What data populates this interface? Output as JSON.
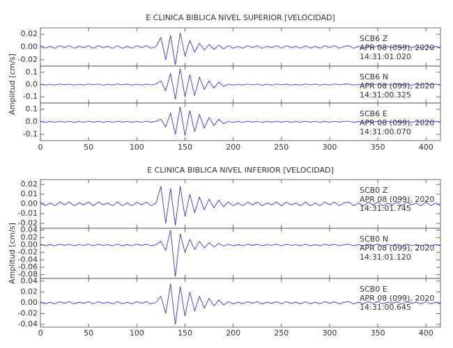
{
  "chart_data": [
    {
      "type": "line",
      "title": "E CLINICA BIBLICA NIVEL SUPERIOR [VELOCIDAD]",
      "y_label": "Amplitud [cm/s]",
      "color": "#1a1aff",
      "xlim": [
        0,
        415
      ],
      "xticks": [
        0,
        50,
        100,
        150,
        200,
        250,
        300,
        350,
        400
      ],
      "x": [
        0,
        5,
        10,
        15,
        20,
        25,
        30,
        35,
        40,
        45,
        50,
        55,
        60,
        65,
        70,
        75,
        80,
        85,
        90,
        95,
        100,
        105,
        110,
        115,
        120,
        125,
        130,
        135,
        140,
        145,
        150,
        155,
        160,
        165,
        170,
        175,
        180,
        185,
        190,
        195,
        200,
        205,
        210,
        215,
        220,
        225,
        230,
        235,
        240,
        245,
        250,
        255,
        260,
        265,
        270,
        275,
        280,
        285,
        290,
        295,
        300,
        305,
        310,
        315,
        320,
        325,
        330,
        335,
        340,
        345,
        350,
        355,
        360,
        365,
        370,
        375,
        380,
        385,
        390,
        395,
        400,
        405,
        410,
        415
      ],
      "panels": [
        {
          "station": "SCB6   Z",
          "date": "APR 08 (099), 2020",
          "time": "14:31:01.020",
          "ylim": [
            -0.03,
            0.03
          ],
          "yticks": [
            0.02,
            {
              "value": 0,
              "label": "0.00"
            },
            -0.02
          ],
          "values": [
            0.002,
            -0.002,
            0.001,
            -0.002,
            0.002,
            -0.001,
            0.002,
            -0.002,
            0.001,
            -0.001,
            0.002,
            -0.002,
            0.002,
            -0.001,
            0.001,
            -0.002,
            0.002,
            -0.002,
            0.001,
            -0.002,
            0.002,
            -0.001,
            0.002,
            -0.002,
            0.001,
            0.015,
            -0.02,
            0.018,
            -0.028,
            0.022,
            -0.014,
            0.01,
            -0.008,
            0.006,
            -0.005,
            0.004,
            -0.004,
            0.003,
            -0.003,
            0.002,
            -0.002,
            0.001,
            -0.002,
            0.002,
            -0.001,
            0.002,
            -0.002,
            0.001,
            -0.001,
            0.002,
            -0.002,
            0.002,
            -0.001,
            0.001,
            -0.002,
            0.002,
            -0.002,
            0.001,
            -0.002,
            0.002,
            -0.001,
            0.002,
            -0.002,
            0.001,
            0.002,
            -0.002,
            0.001,
            -0.002,
            0.002,
            -0.001,
            0.002,
            -0.002,
            0.001,
            -0.001,
            0.002,
            -0.002,
            0.002,
            -0.001,
            0.001,
            -0.002,
            0.002,
            -0.002,
            0.001,
            -0.002
          ]
        },
        {
          "station": "SCB6   N",
          "date": "APR 08 (099), 2020",
          "time": "14:31:00.325",
          "ylim": [
            -0.15,
            0.15
          ],
          "yticks": [
            0.1,
            {
              "value": 0,
              "label": "0.0"
            },
            -0.1
          ],
          "values": [
            0.004,
            -0.005,
            0.003,
            -0.004,
            0.005,
            -0.003,
            0.004,
            -0.005,
            0.003,
            -0.004,
            0.005,
            -0.003,
            0.004,
            -0.005,
            0.003,
            -0.004,
            0.005,
            -0.003,
            0.004,
            -0.005,
            0.003,
            -0.004,
            0.005,
            -0.003,
            0.004,
            0.03,
            -0.05,
            0.09,
            -0.12,
            0.13,
            -0.1,
            0.08,
            -0.09,
            0.06,
            -0.04,
            0.03,
            -0.03,
            0.02,
            -0.015,
            0.004,
            -0.005,
            0.003,
            -0.004,
            0.005,
            -0.003,
            0.004,
            -0.005,
            0.003,
            -0.004,
            0.005,
            -0.003,
            0.004,
            -0.005,
            0.003,
            -0.004,
            0.005,
            -0.003,
            0.004,
            -0.005,
            0.003,
            -0.004,
            0.005,
            -0.003,
            0.004,
            0.004,
            -0.005,
            0.003,
            -0.004,
            0.005,
            -0.003,
            0.004,
            -0.005,
            0.003,
            -0.004,
            0.005,
            -0.003,
            0.004,
            -0.005,
            0.003,
            -0.004,
            0.005,
            -0.003,
            0.004,
            -0.005
          ]
        },
        {
          "station": "SCB6   E",
          "date": "APR 08 (099), 2020",
          "time": "14:31:00.070",
          "ylim": [
            -0.15,
            0.15
          ],
          "yticks": [
            0.1,
            {
              "value": 0,
              "label": "0.0"
            },
            -0.1
          ],
          "values": [
            0.004,
            -0.005,
            0.003,
            -0.004,
            0.005,
            -0.003,
            0.004,
            -0.005,
            0.003,
            -0.004,
            0.005,
            -0.003,
            0.004,
            -0.005,
            0.003,
            -0.004,
            0.005,
            -0.003,
            0.004,
            -0.005,
            0.003,
            -0.004,
            0.005,
            -0.003,
            0.004,
            0.02,
            -0.04,
            0.07,
            -0.1,
            0.12,
            -0.11,
            0.09,
            -0.08,
            0.06,
            -0.05,
            0.035,
            -0.03,
            0.02,
            -0.015,
            0.004,
            -0.005,
            0.003,
            -0.004,
            0.005,
            -0.003,
            0.004,
            -0.005,
            0.003,
            -0.004,
            0.005,
            -0.003,
            0.004,
            -0.005,
            0.003,
            -0.004,
            0.005,
            -0.003,
            0.004,
            -0.005,
            0.003,
            -0.004,
            0.005,
            -0.003,
            0.004,
            0.004,
            -0.005,
            0.003,
            -0.004,
            0.005,
            -0.003,
            0.004,
            -0.005,
            0.003,
            -0.004,
            0.005,
            -0.003,
            0.004,
            -0.005,
            0.003,
            -0.004,
            0.005,
            -0.003,
            0.004,
            -0.005
          ]
        }
      ]
    },
    {
      "type": "line",
      "title": "E CLINICA BIBLICA NIVEL INFERIOR [VELOCIDAD]",
      "y_label": "Amplitud [cm/s]",
      "color": "#1a1aff",
      "xlim": [
        0,
        415
      ],
      "xticks": [
        0,
        50,
        100,
        150,
        200,
        250,
        300,
        350,
        400
      ],
      "x": [
        0,
        5,
        10,
        15,
        20,
        25,
        30,
        35,
        40,
        45,
        50,
        55,
        60,
        65,
        70,
        75,
        80,
        85,
        90,
        95,
        100,
        105,
        110,
        115,
        120,
        125,
        130,
        135,
        140,
        145,
        150,
        155,
        160,
        165,
        170,
        175,
        180,
        185,
        190,
        195,
        200,
        205,
        210,
        215,
        220,
        225,
        230,
        235,
        240,
        245,
        250,
        255,
        260,
        265,
        270,
        275,
        280,
        285,
        290,
        295,
        300,
        305,
        310,
        315,
        320,
        325,
        330,
        335,
        340,
        345,
        350,
        355,
        360,
        365,
        370,
        375,
        380,
        385,
        390,
        395,
        400,
        405,
        410,
        415
      ],
      "panels": [
        {
          "station": "SCB0   Z",
          "date": "APR 08 (099), 2020",
          "time": "14:31:01.745",
          "ylim": [
            -0.025,
            0.025
          ],
          "yticks": [
            0.02,
            0.01,
            {
              "value": 0,
              "label": "0.00"
            },
            -0.01,
            -0.02
          ],
          "values": [
            0.002,
            -0.002,
            0.001,
            -0.002,
            0.002,
            -0.001,
            0.002,
            -0.002,
            0.001,
            -0.001,
            0.002,
            -0.002,
            0.002,
            -0.001,
            0.001,
            -0.002,
            0.002,
            -0.002,
            0.001,
            -0.002,
            0.002,
            -0.001,
            0.002,
            -0.002,
            0.001,
            0.018,
            -0.02,
            0.016,
            -0.022,
            0.018,
            -0.013,
            0.01,
            -0.009,
            0.007,
            -0.006,
            0.005,
            -0.004,
            0.004,
            -0.003,
            0.002,
            -0.002,
            0.001,
            -0.002,
            0.002,
            -0.001,
            0.002,
            -0.002,
            0.001,
            -0.001,
            0.002,
            -0.002,
            0.002,
            -0.001,
            0.001,
            -0.002,
            0.002,
            -0.002,
            0.001,
            -0.002,
            0.002,
            -0.001,
            0.002,
            -0.002,
            0.001,
            0.002,
            -0.002,
            0.001,
            -0.002,
            0.002,
            -0.001,
            0.002,
            -0.002,
            0.001,
            -0.001,
            0.002,
            -0.002,
            0.002,
            -0.001,
            0.001,
            -0.002,
            0.002,
            -0.002,
            0.001,
            -0.002
          ]
        },
        {
          "station": "SCB0   N",
          "date": "APR 08 (099), 2020",
          "time": "14:31:01.120",
          "ylim": [
            -0.09,
            0.045
          ],
          "yticks": [
            0.04,
            0.02,
            {
              "value": 0,
              "label": "0.00"
            },
            -0.02,
            -0.04,
            -0.06,
            -0.08
          ],
          "values": [
            0.002,
            -0.002,
            0.001,
            -0.002,
            0.002,
            -0.001,
            0.002,
            -0.002,
            0.001,
            -0.001,
            0.002,
            -0.002,
            0.002,
            -0.001,
            0.001,
            -0.002,
            0.002,
            -0.002,
            0.001,
            -0.002,
            0.002,
            -0.001,
            0.002,
            -0.002,
            0.001,
            0.01,
            -0.015,
            0.04,
            -0.085,
            0.03,
            -0.02,
            0.015,
            -0.012,
            0.01,
            -0.008,
            0.006,
            -0.005,
            0.004,
            -0.003,
            0.002,
            -0.002,
            0.001,
            -0.002,
            0.002,
            -0.001,
            0.002,
            -0.002,
            0.001,
            -0.001,
            0.002,
            -0.002,
            0.002,
            -0.001,
            0.001,
            -0.002,
            0.002,
            -0.002,
            0.001,
            -0.002,
            0.002,
            -0.001,
            0.002,
            -0.002,
            0.001,
            0.002,
            -0.002,
            0.001,
            -0.002,
            0.002,
            -0.001,
            0.002,
            -0.002,
            0.001,
            -0.001,
            0.002,
            -0.002,
            0.002,
            -0.001,
            0.001,
            -0.002,
            0.002,
            -0.002,
            0.001,
            -0.002
          ]
        },
        {
          "station": "SCB0   E",
          "date": "APR 08 (099), 2020",
          "time": "14:31:00.645",
          "ylim": [
            -0.045,
            0.045
          ],
          "yticks": [
            0.04,
            0.02,
            {
              "value": 0,
              "label": "0.00"
            },
            -0.02,
            -0.04
          ],
          "values": [
            0.002,
            -0.002,
            0.001,
            -0.002,
            0.002,
            -0.001,
            0.002,
            -0.002,
            0.001,
            -0.001,
            0.002,
            -0.002,
            0.002,
            -0.001,
            0.001,
            -0.002,
            0.002,
            -0.002,
            0.001,
            -0.002,
            0.002,
            -0.001,
            0.002,
            -0.002,
            0.001,
            0.012,
            -0.02,
            0.035,
            -0.04,
            0.03,
            -0.025,
            0.02,
            -0.015,
            0.012,
            -0.01,
            0.008,
            -0.006,
            0.005,
            -0.004,
            0.002,
            -0.002,
            0.001,
            -0.002,
            0.002,
            -0.001,
            0.002,
            -0.002,
            0.001,
            -0.001,
            0.002,
            -0.002,
            0.002,
            -0.001,
            0.001,
            -0.002,
            0.002,
            -0.002,
            0.001,
            -0.002,
            0.002,
            -0.001,
            0.002,
            -0.002,
            0.001,
            0.002,
            -0.002,
            0.001,
            -0.002,
            0.002,
            -0.001,
            0.002,
            -0.002,
            0.001,
            -0.001,
            0.002,
            -0.002,
            0.002,
            -0.001,
            0.001,
            -0.002,
            0.002,
            -0.002,
            0.001,
            -0.002
          ]
        }
      ]
    }
  ]
}
